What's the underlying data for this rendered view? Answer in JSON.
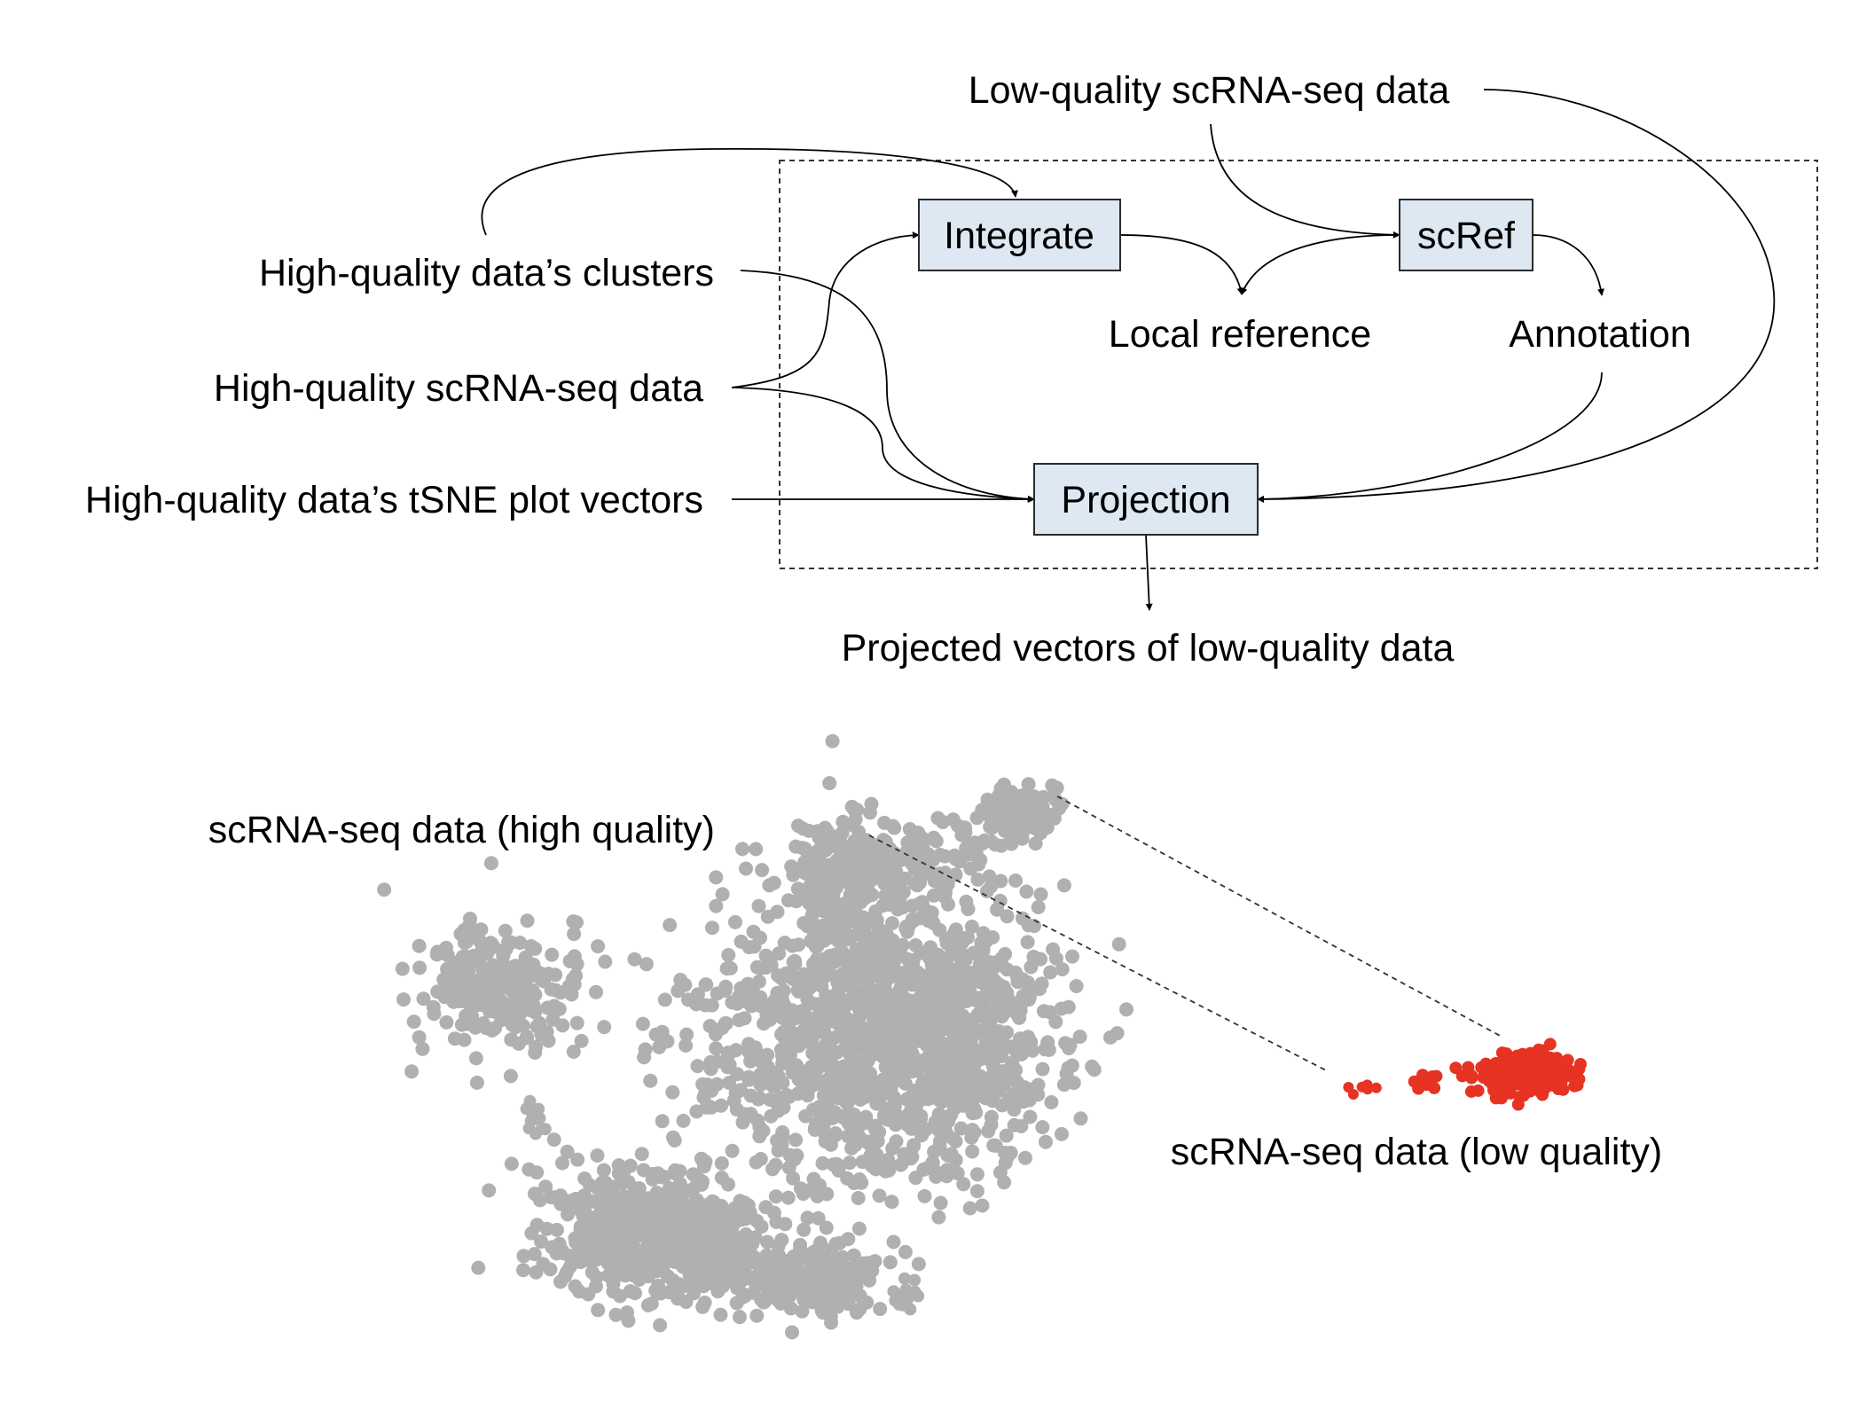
{
  "diagram": {
    "inputs": {
      "low_quality_data": "Low-quality scRNA-seq data",
      "hq_clusters": "High-quality data’s clusters",
      "hq_data": "High-quality scRNA-seq data",
      "hq_tsne": "High-quality data’s tSNE plot vectors"
    },
    "processes": {
      "integrate": "Integrate",
      "scref": "scRef",
      "projection": "Projection"
    },
    "intermediates": {
      "local_reference": "Local reference",
      "annotation": "Annotation"
    },
    "output": "Projected vectors of low-quality data",
    "colors": {
      "box_fill": "#dde8f3",
      "box_stroke": "#2b2b2b",
      "line": "#000000"
    }
  },
  "scatter": {
    "high_quality_label": "scRNA-seq data (high quality)",
    "low_quality_label": "scRNA-seq data (low quality)",
    "high_quality_color": "#b0b0b0",
    "low_quality_color": "#e63322"
  }
}
